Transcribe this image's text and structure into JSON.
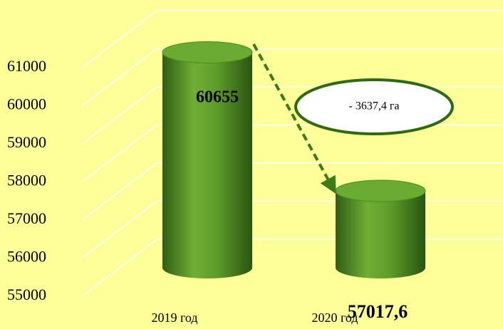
{
  "chart_data": {
    "type": "bar3d",
    "categories": [
      "2019 год",
      "2020 год"
    ],
    "values": [
      60655,
      57017.6
    ],
    "value_labels": [
      "60655",
      "57017,6"
    ],
    "color": "#5a9a2a",
    "ylim": [
      55000,
      61000
    ],
    "yticks": [
      55000,
      56000,
      57000,
      58000,
      59000,
      60000,
      61000
    ],
    "grid": true,
    "annotation": "-  3637,4 га"
  }
}
